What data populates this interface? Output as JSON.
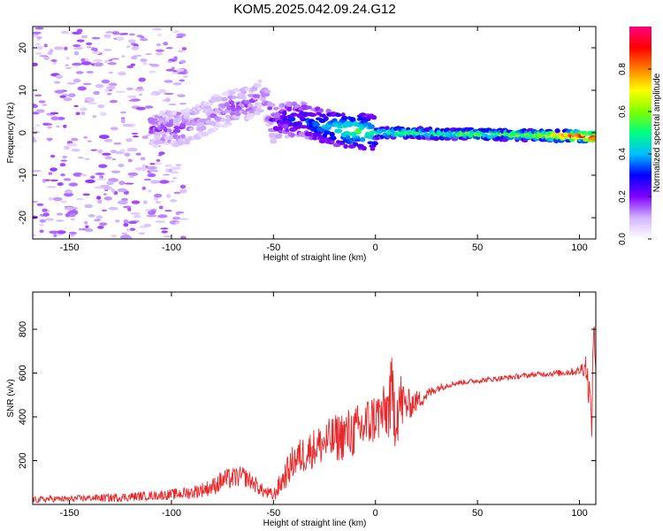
{
  "title": "KOM5.2025.042.09.24.G12",
  "chart_data": [
    {
      "type": "heatmap",
      "xlabel": "Height of straight line (km)",
      "ylabel": "Frequency (Hz)",
      "xlim": [
        -168,
        108
      ],
      "ylim": [
        -25,
        25
      ],
      "xticks": [
        -150,
        -100,
        -50,
        0,
        50,
        100
      ],
      "yticks": [
        -20,
        -10,
        0,
        10,
        20
      ],
      "colorbar": {
        "label": "Normalized spectral amplitude",
        "range": [
          0,
          1
        ],
        "ticks": [
          0.0,
          0.2,
          0.4,
          0.6,
          0.8
        ],
        "colormap": [
          "#ffffff",
          "#d2b4ff",
          "#8000ff",
          "#0000ff",
          "#00c0ff",
          "#00ff80",
          "#80ff00",
          "#ffff00",
          "#ff8000",
          "#ff0000",
          "#ff0080"
        ]
      },
      "ridge": {
        "x": [
          -105,
          -95,
          -85,
          -78,
          -70,
          -62,
          -55,
          -50,
          -45,
          -40,
          -35,
          -30,
          -20,
          -10,
          0,
          10,
          20,
          30,
          40,
          50,
          60,
          70,
          80,
          90,
          100,
          105
        ],
        "frequency": [
          1,
          1,
          3,
          5,
          6,
          7,
          9,
          2,
          3,
          3,
          3,
          2,
          1,
          0.5,
          0,
          0,
          0,
          -0.3,
          -0.3,
          -0.3,
          -0.4,
          -0.5,
          -0.6,
          -0.7,
          -0.8,
          -1
        ],
        "amplitude": [
          0.15,
          0.15,
          0.12,
          0.12,
          0.15,
          0.15,
          0.12,
          0.2,
          0.25,
          0.3,
          0.3,
          0.35,
          0.45,
          0.55,
          0.5,
          0.55,
          0.55,
          0.5,
          0.55,
          0.6,
          0.55,
          0.6,
          0.65,
          0.8,
          0.9,
          0.95
        ]
      }
    },
    {
      "type": "line",
      "xlabel": "Height of straight line (km)",
      "ylabel": "SNR (v/v)",
      "xlim": [
        -168,
        108
      ],
      "ylim": [
        0,
        970
      ],
      "xticks": [
        -150,
        -100,
        -50,
        0,
        50,
        100
      ],
      "yticks": [
        200,
        400,
        600,
        800
      ],
      "series": [
        {
          "color": "#e8282a",
          "x": [
            -168,
            -160,
            -150,
            -140,
            -130,
            -120,
            -110,
            -100,
            -90,
            -80,
            -75,
            -70,
            -65,
            -60,
            -55,
            -50,
            -45,
            -40,
            -35,
            -30,
            -25,
            -20,
            -15,
            -10,
            -5,
            0,
            5,
            8,
            10,
            12,
            15,
            20,
            25,
            30,
            35,
            40,
            50,
            60,
            70,
            80,
            90,
            100,
            103,
            105,
            106,
            107,
            108
          ],
          "y": [
            20,
            25,
            25,
            30,
            30,
            35,
            40,
            45,
            55,
            80,
            110,
            120,
            130,
            100,
            60,
            40,
            120,
            200,
            230,
            260,
            280,
            300,
            320,
            330,
            360,
            400,
            420,
            480,
            430,
            470,
            450,
            470,
            500,
            530,
            545,
            555,
            565,
            575,
            585,
            595,
            600,
            610,
            640,
            500,
            360,
            850,
            610
          ],
          "noise": [
            15,
            15,
            15,
            15,
            20,
            20,
            20,
            25,
            30,
            40,
            50,
            50,
            45,
            40,
            30,
            30,
            60,
            80,
            90,
            90,
            100,
            110,
            120,
            120,
            130,
            120,
            130,
            200,
            180,
            160,
            80,
            50,
            30,
            20,
            15,
            12,
            12,
            12,
            12,
            12,
            15,
            20,
            60,
            80,
            60,
            100,
            10
          ]
        }
      ]
    }
  ]
}
